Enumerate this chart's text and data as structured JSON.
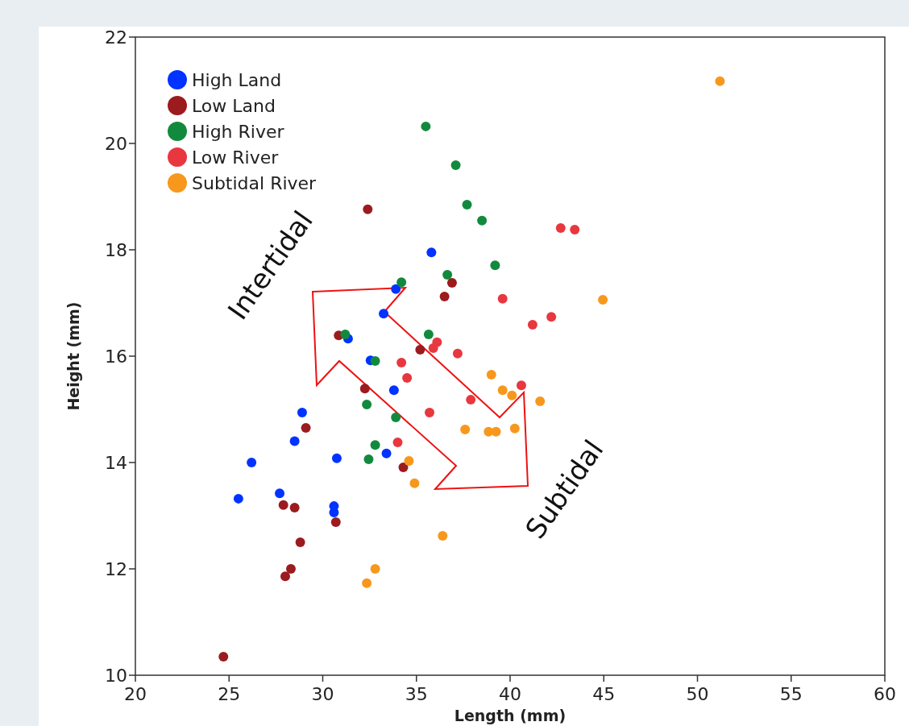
{
  "chart_data": {
    "type": "scatter",
    "xlabel": "Length (mm)",
    "ylabel": "Height (mm)",
    "xlim": [
      20,
      60
    ],
    "ylim": [
      10,
      22
    ],
    "xticks": [
      20,
      25,
      30,
      35,
      40,
      45,
      50,
      55,
      60
    ],
    "yticks": [
      10,
      12,
      14,
      16,
      18,
      20,
      22
    ],
    "grid": false,
    "legend": "top left",
    "marker": "circle",
    "annotations": [
      "Intertidal",
      "Subtidal"
    ],
    "series": [
      {
        "name": "High Land",
        "color": "#0033ff",
        "x": [
          25.5,
          26.2,
          27.7,
          28.5,
          28.9,
          30.6,
          30.6,
          30.75,
          31.35,
          32.55,
          33.4,
          33.8,
          33.25,
          33.9,
          35.8
        ],
        "values": [
          13.32,
          14.0,
          13.42,
          14.4,
          14.94,
          13.18,
          13.06,
          14.08,
          16.33,
          15.92,
          14.17,
          15.36,
          16.8,
          17.26,
          17.95
        ]
      },
      {
        "name": "Low Land",
        "color": "#9b1b1e",
        "x": [
          24.7,
          27.9,
          28.5,
          28.8,
          28.0,
          28.3,
          29.1,
          30.7,
          30.85,
          32.25,
          32.4,
          34.3,
          35.2,
          36.5,
          36.9
        ],
        "values": [
          10.35,
          13.2,
          13.15,
          12.5,
          11.86,
          12.0,
          14.65,
          12.88,
          16.39,
          15.39,
          18.76,
          13.91,
          16.12,
          17.12,
          17.38
        ]
      },
      {
        "name": "High River",
        "color": "#128a3e",
        "x": [
          31.2,
          32.8,
          32.35,
          32.45,
          32.8,
          33.9,
          34.2,
          35.5,
          35.65,
          36.65,
          37.1,
          37.7,
          38.5,
          39.2
        ],
        "values": [
          16.41,
          15.91,
          15.09,
          14.06,
          14.33,
          14.85,
          17.39,
          20.32,
          16.41,
          17.53,
          19.59,
          18.85,
          18.55,
          17.71
        ]
      },
      {
        "name": "Low River",
        "color": "#e8373f",
        "x": [
          34.0,
          34.2,
          34.5,
          35.7,
          35.9,
          36.1,
          37.2,
          37.9,
          39.6,
          40.6,
          41.2,
          42.2,
          42.7,
          43.45
        ],
        "values": [
          14.38,
          15.88,
          15.59,
          14.94,
          16.15,
          16.26,
          16.05,
          15.18,
          17.08,
          15.45,
          16.59,
          16.74,
          18.41,
          18.38
        ]
      },
      {
        "name": "Subtidal River",
        "color": "#f7981d",
        "x": [
          32.35,
          32.8,
          34.6,
          34.9,
          36.4,
          37.6,
          39.0,
          38.85,
          39.25,
          39.6,
          40.1,
          40.25,
          41.6,
          44.95,
          51.2
        ],
        "values": [
          11.73,
          12.0,
          14.03,
          13.61,
          12.62,
          14.62,
          15.65,
          14.58,
          14.58,
          15.36,
          15.26,
          14.64,
          15.15,
          17.06,
          21.17
        ]
      }
    ]
  }
}
